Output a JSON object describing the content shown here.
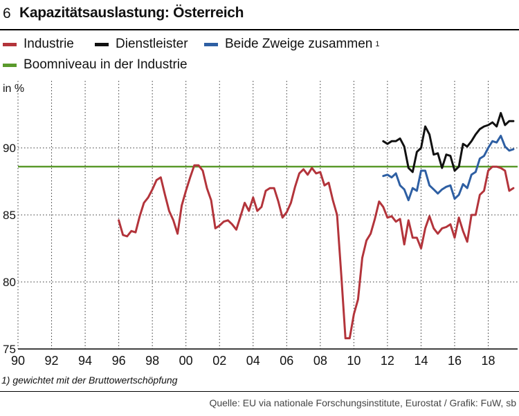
{
  "header": {
    "number": "6",
    "title": "Kapazitätsauslastung: Österreich"
  },
  "legend": [
    {
      "label": "Industrie",
      "color": "#b3343b",
      "sup": ""
    },
    {
      "label": "Dienstleister",
      "color": "#111111",
      "sup": ""
    },
    {
      "label": "Beide Zweige zusammen",
      "color": "#2e5fa3",
      "sup": "1"
    },
    {
      "label": "Boomniveau in der Industrie",
      "color": "#5a9a2c",
      "sup": ""
    }
  ],
  "footnote": "1) gewichtet mit der Bruttowertschöpfung",
  "source": "Quelle: EU via nationale Forschungsinstitute, Eurostat / Grafik: FuW, sb",
  "chart_data": {
    "type": "line",
    "title": "Kapazitätsauslastung: Österreich",
    "ylabel": "in %",
    "xlabel": "",
    "xlim": [
      1990,
      2019.75
    ],
    "ylim": [
      75,
      95
    ],
    "x_tick_labels": [
      {
        "x": 1990,
        "label": "90"
      },
      {
        "x": 1992,
        "label": "92"
      },
      {
        "x": 1994,
        "label": "94"
      },
      {
        "x": 1996,
        "label": "96"
      },
      {
        "x": 1998,
        "label": "98"
      },
      {
        "x": 2000,
        "label": "00"
      },
      {
        "x": 2002,
        "label": "02"
      },
      {
        "x": 2004,
        "label": "04"
      },
      {
        "x": 2006,
        "label": "06"
      },
      {
        "x": 2008,
        "label": "08"
      },
      {
        "x": 2010,
        "label": "10"
      },
      {
        "x": 2012,
        "label": "12"
      },
      {
        "x": 2014,
        "label": "14"
      },
      {
        "x": 2016,
        "label": "16"
      },
      {
        "x": 2018,
        "label": "18"
      }
    ],
    "y_ticks": [
      75,
      80,
      85,
      90
    ],
    "grid": "dotted",
    "reference_line": {
      "name": "Boomniveau in der Industrie",
      "value": 88.6,
      "color": "#5a9a2c"
    },
    "series": [
      {
        "name": "Industrie",
        "color": "#b3343b",
        "points": [
          [
            1996.0,
            84.6
          ],
          [
            1996.25,
            83.5
          ],
          [
            1996.5,
            83.4
          ],
          [
            1996.75,
            83.8
          ],
          [
            1997.0,
            83.7
          ],
          [
            1997.25,
            84.9
          ],
          [
            1997.5,
            85.9
          ],
          [
            1997.75,
            86.3
          ],
          [
            1998.0,
            86.9
          ],
          [
            1998.25,
            87.6
          ],
          [
            1998.5,
            87.8
          ],
          [
            1998.75,
            86.5
          ],
          [
            1999.0,
            85.3
          ],
          [
            1999.25,
            84.6
          ],
          [
            1999.5,
            83.6
          ],
          [
            1999.75,
            85.7
          ],
          [
            2000.0,
            86.8
          ],
          [
            2000.25,
            87.8
          ],
          [
            2000.5,
            88.7
          ],
          [
            2000.75,
            88.7
          ],
          [
            2001.0,
            88.3
          ],
          [
            2001.25,
            87.0
          ],
          [
            2001.5,
            86.1
          ],
          [
            2001.75,
            84.0
          ],
          [
            2002.0,
            84.2
          ],
          [
            2002.25,
            84.5
          ],
          [
            2002.5,
            84.6
          ],
          [
            2002.75,
            84.3
          ],
          [
            2003.0,
            83.9
          ],
          [
            2003.25,
            84.9
          ],
          [
            2003.5,
            85.9
          ],
          [
            2003.75,
            85.3
          ],
          [
            2004.0,
            86.3
          ],
          [
            2004.25,
            85.3
          ],
          [
            2004.5,
            85.6
          ],
          [
            2004.75,
            86.8
          ],
          [
            2005.0,
            87.0
          ],
          [
            2005.25,
            87.0
          ],
          [
            2005.5,
            86.0
          ],
          [
            2005.75,
            84.8
          ],
          [
            2006.0,
            85.2
          ],
          [
            2006.25,
            85.9
          ],
          [
            2006.5,
            87.1
          ],
          [
            2006.75,
            88.1
          ],
          [
            2007.0,
            88.4
          ],
          [
            2007.25,
            88.0
          ],
          [
            2007.5,
            88.5
          ],
          [
            2007.75,
            88.1
          ],
          [
            2008.0,
            88.2
          ],
          [
            2008.25,
            87.2
          ],
          [
            2008.5,
            87.4
          ],
          [
            2008.75,
            86.1
          ],
          [
            2009.0,
            85.0
          ],
          [
            2009.25,
            80.5
          ],
          [
            2009.5,
            75.8
          ],
          [
            2009.75,
            75.8
          ],
          [
            2010.0,
            77.6
          ],
          [
            2010.25,
            78.7
          ],
          [
            2010.5,
            81.8
          ],
          [
            2010.75,
            83.1
          ],
          [
            2011.0,
            83.6
          ],
          [
            2011.25,
            84.7
          ],
          [
            2011.5,
            86.0
          ],
          [
            2011.75,
            85.6
          ],
          [
            2012.0,
            84.8
          ],
          [
            2012.25,
            84.9
          ],
          [
            2012.5,
            84.5
          ],
          [
            2012.75,
            84.7
          ],
          [
            2013.0,
            82.8
          ],
          [
            2013.25,
            84.6
          ],
          [
            2013.5,
            83.3
          ],
          [
            2013.75,
            83.3
          ],
          [
            2014.0,
            82.5
          ],
          [
            2014.25,
            84.0
          ],
          [
            2014.5,
            84.9
          ],
          [
            2014.75,
            84.0
          ],
          [
            2015.0,
            83.6
          ],
          [
            2015.25,
            84.0
          ],
          [
            2015.5,
            84.1
          ],
          [
            2015.75,
            84.3
          ],
          [
            2016.0,
            83.3
          ],
          [
            2016.25,
            84.8
          ],
          [
            2016.5,
            83.8
          ],
          [
            2016.75,
            83.0
          ],
          [
            2017.0,
            85.0
          ],
          [
            2017.25,
            85.0
          ],
          [
            2017.5,
            86.5
          ],
          [
            2017.75,
            86.8
          ],
          [
            2018.0,
            88.3
          ],
          [
            2018.25,
            88.6
          ],
          [
            2018.5,
            88.6
          ],
          [
            2018.75,
            88.5
          ],
          [
            2019.0,
            88.3
          ],
          [
            2019.25,
            86.8
          ],
          [
            2019.5,
            87.0
          ]
        ]
      },
      {
        "name": "Dienstleister",
        "color": "#111111",
        "points": [
          [
            2011.75,
            90.5
          ],
          [
            2012.0,
            90.3
          ],
          [
            2012.25,
            90.5
          ],
          [
            2012.5,
            90.5
          ],
          [
            2012.75,
            90.7
          ],
          [
            2013.0,
            90.1
          ],
          [
            2013.25,
            88.5
          ],
          [
            2013.5,
            88.2
          ],
          [
            2013.75,
            89.7
          ],
          [
            2014.0,
            90.0
          ],
          [
            2014.25,
            91.6
          ],
          [
            2014.5,
            91.0
          ],
          [
            2014.75,
            89.5
          ],
          [
            2015.0,
            89.6
          ],
          [
            2015.25,
            88.5
          ],
          [
            2015.5,
            89.5
          ],
          [
            2015.75,
            89.4
          ],
          [
            2016.0,
            88.3
          ],
          [
            2016.25,
            88.6
          ],
          [
            2016.5,
            90.3
          ],
          [
            2016.75,
            90.1
          ],
          [
            2017.0,
            90.5
          ],
          [
            2017.25,
            91.0
          ],
          [
            2017.5,
            91.4
          ],
          [
            2017.75,
            91.6
          ],
          [
            2018.0,
            91.7
          ],
          [
            2018.25,
            91.9
          ],
          [
            2018.5,
            91.6
          ],
          [
            2018.75,
            92.6
          ],
          [
            2019.0,
            91.7
          ],
          [
            2019.25,
            92.0
          ],
          [
            2019.5,
            92.0
          ]
        ]
      },
      {
        "name": "Beide Zweige zusammen",
        "color": "#2e5fa3",
        "points": [
          [
            2011.75,
            87.9
          ],
          [
            2012.0,
            88.0
          ],
          [
            2012.25,
            87.8
          ],
          [
            2012.5,
            88.1
          ],
          [
            2012.75,
            87.2
          ],
          [
            2013.0,
            86.9
          ],
          [
            2013.25,
            86.1
          ],
          [
            2013.5,
            87.0
          ],
          [
            2013.75,
            86.8
          ],
          [
            2014.0,
            88.3
          ],
          [
            2014.25,
            88.3
          ],
          [
            2014.5,
            87.2
          ],
          [
            2014.75,
            86.9
          ],
          [
            2015.0,
            86.6
          ],
          [
            2015.25,
            86.9
          ],
          [
            2015.5,
            87.1
          ],
          [
            2015.75,
            87.2
          ],
          [
            2016.0,
            86.2
          ],
          [
            2016.25,
            86.5
          ],
          [
            2016.5,
            87.3
          ],
          [
            2016.75,
            87.0
          ],
          [
            2017.0,
            88.0
          ],
          [
            2017.25,
            88.2
          ],
          [
            2017.5,
            89.2
          ],
          [
            2017.75,
            89.4
          ],
          [
            2018.0,
            90.0
          ],
          [
            2018.25,
            90.5
          ],
          [
            2018.5,
            90.4
          ],
          [
            2018.75,
            90.9
          ],
          [
            2019.0,
            90.1
          ],
          [
            2019.25,
            89.8
          ],
          [
            2019.5,
            89.9
          ]
        ]
      }
    ]
  }
}
